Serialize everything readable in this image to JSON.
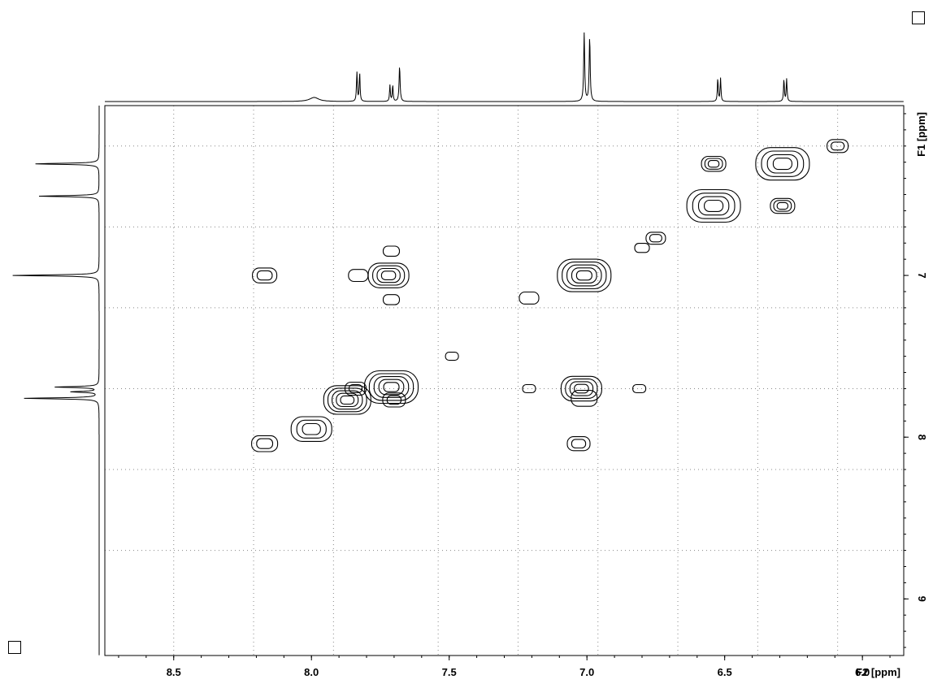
{
  "chart_data": {
    "type": "contour-2d-nmr",
    "f2_axis": {
      "label": "F2 [ppm]",
      "range": [
        8.75,
        5.85
      ],
      "ticks": [
        "8.5",
        "8.0",
        "7.5",
        "7.0",
        "6.5",
        "6.0"
      ],
      "tick_values": [
        8.5,
        8.0,
        7.5,
        7.0,
        6.5,
        6.0
      ],
      "gridlines": [
        8.5,
        8.21,
        7.92,
        7.54,
        7.25,
        6.96,
        6.67,
        6.38,
        6.09
      ],
      "direction": "decreasing"
    },
    "f1_axis": {
      "label": "F1 [ppm]",
      "range": [
        5.95,
        9.35
      ],
      "ticks": [
        "7",
        "8",
        "9"
      ],
      "tick_values": [
        7,
        8,
        9
      ],
      "gridlines": [
        6.2,
        6.7,
        7.2,
        7.7,
        8.2,
        8.7
      ],
      "direction": "increasing"
    },
    "grid": true,
    "top_projection_peaks": [
      {
        "ppm": 7.83,
        "height": 0.85,
        "mult": 2
      },
      {
        "ppm": 7.71,
        "height": 0.48,
        "mult": 2
      },
      {
        "ppm": 7.68,
        "height": 0.52,
        "mult": 1
      },
      {
        "ppm": 7.01,
        "height": 1.0,
        "mult": 1
      },
      {
        "ppm": 6.99,
        "height": 0.95,
        "mult": 1
      },
      {
        "ppm": 6.52,
        "height": 0.68,
        "mult": 2
      },
      {
        "ppm": 6.28,
        "height": 0.66,
        "mult": 2
      },
      {
        "ppm": 7.99,
        "height": 0.06,
        "mult": 1
      }
    ],
    "left_projection_peaks": [
      {
        "ppm": 6.31,
        "height": 0.7
      },
      {
        "ppm": 6.51,
        "height": 0.66
      },
      {
        "ppm": 7.0,
        "height": 0.95
      },
      {
        "ppm": 7.69,
        "height": 0.48
      },
      {
        "ppm": 7.72,
        "height": 0.3
      },
      {
        "ppm": 7.76,
        "height": 0.82
      }
    ],
    "cross_peaks": [
      {
        "f2": 6.09,
        "f1": 6.2,
        "size": 1,
        "levels": 2
      },
      {
        "f2": 6.29,
        "f1": 6.31,
        "size": 3,
        "levels": 4
      },
      {
        "f2": 6.54,
        "f1": 6.31,
        "size": 1.2,
        "levels": 3
      },
      {
        "f2": 6.54,
        "f1": 6.57,
        "size": 3,
        "levels": 4
      },
      {
        "f2": 6.29,
        "f1": 6.57,
        "size": 1.2,
        "levels": 3
      },
      {
        "f2": 6.75,
        "f1": 6.77,
        "size": 0.9,
        "levels": 2
      },
      {
        "f2": 6.8,
        "f1": 6.83,
        "size": 0.6,
        "levels": 1
      },
      {
        "f2": 7.01,
        "f1": 7.0,
        "size": 3,
        "levels": 5
      },
      {
        "f2": 7.72,
        "f1": 7.0,
        "size": 2.2,
        "levels": 4
      },
      {
        "f2": 7.83,
        "f1": 7.0,
        "size": 0.9,
        "levels": 1
      },
      {
        "f2": 8.17,
        "f1": 7.0,
        "size": 1.2,
        "levels": 2
      },
      {
        "f2": 7.71,
        "f1": 6.85,
        "size": 0.7,
        "levels": 1
      },
      {
        "f2": 7.71,
        "f1": 7.15,
        "size": 0.7,
        "levels": 1
      },
      {
        "f2": 7.21,
        "f1": 7.14,
        "size": 0.9,
        "levels": 1
      },
      {
        "f2": 7.49,
        "f1": 7.5,
        "size": 0.5,
        "levels": 1
      },
      {
        "f2": 7.71,
        "f1": 7.69,
        "size": 3,
        "levels": 5
      },
      {
        "f2": 7.84,
        "f1": 7.7,
        "size": 1,
        "levels": 2
      },
      {
        "f2": 7.87,
        "f1": 7.77,
        "size": 2.6,
        "levels": 5
      },
      {
        "f2": 7.7,
        "f1": 7.77,
        "size": 1.1,
        "levels": 2
      },
      {
        "f2": 7.02,
        "f1": 7.7,
        "size": 2.2,
        "levels": 4
      },
      {
        "f2": 7.21,
        "f1": 7.7,
        "size": 0.5,
        "levels": 1
      },
      {
        "f2": 6.81,
        "f1": 7.7,
        "size": 0.5,
        "levels": 1
      },
      {
        "f2": 7.01,
        "f1": 7.76,
        "size": 1.3,
        "levels": 1
      },
      {
        "f2": 8.0,
        "f1": 7.95,
        "size": 2.2,
        "levels": 3
      },
      {
        "f2": 8.17,
        "f1": 8.04,
        "size": 1.3,
        "levels": 2
      },
      {
        "f2": 7.03,
        "f1": 8.04,
        "size": 1.1,
        "levels": 2
      }
    ]
  },
  "corner_controls": [
    "top-right-toggle",
    "bottom-left-toggle"
  ]
}
